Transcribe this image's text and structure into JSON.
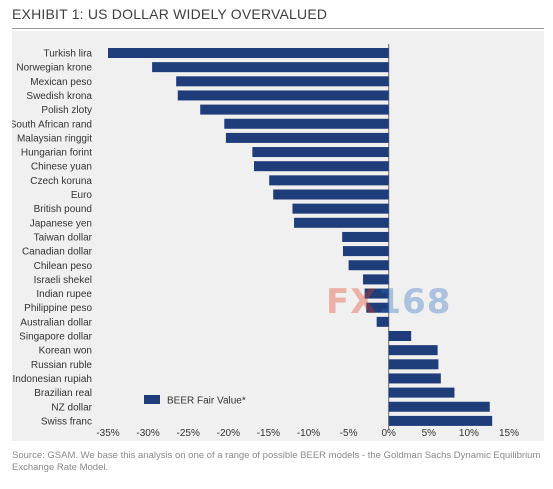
{
  "header": {
    "title": "EXHIBIT 1: US DOLLAR WIDELY OVERVALUED"
  },
  "watermark": {
    "fx": "FX",
    "num": "168"
  },
  "footer": {
    "source": "Source: GSAM. We base this analysis on one of a range of possible BEER models - the Goldman Sachs Dynamic Equilibrium Exchange Rate Model."
  },
  "colors": {
    "bar": "#1f3d7a",
    "panel": "#f0f0f0",
    "axis": "#6b6b6b"
  },
  "chart_data": {
    "type": "bar",
    "orientation": "horizontal",
    "title": "",
    "xlabel": "",
    "ylabel": "",
    "xlim": [
      -35,
      15
    ],
    "x_ticks": [
      -35,
      -30,
      -25,
      -20,
      -15,
      -10,
      -5,
      0,
      5,
      10,
      15
    ],
    "x_tick_labels": [
      "-35%",
      "-30%",
      "-25%",
      "-20%",
      "-15%",
      "-10%",
      "-5%",
      "0%",
      "5%",
      "10%",
      "15%"
    ],
    "legend": {
      "position": "bottom-left",
      "entries": [
        "BEER Fair Value*"
      ]
    },
    "categories": [
      "Turkish lira",
      "Norwegian krone",
      "Mexican peso",
      "Swedish krona",
      "Polish zloty",
      "South African rand",
      "Malaysian ringgit",
      "Hungarian forint",
      "Chinese yuan",
      "Czech koruna",
      "Euro",
      "British pound",
      "Japanese yen",
      "Taiwan dollar",
      "Canadian dollar",
      "Chilean peso",
      "Israeli shekel",
      "Indian rupee",
      "Philippine peso",
      "Australian dollar",
      "Singapore dollar",
      "Korean won",
      "Russian ruble",
      "Indonesian rupiah",
      "Brazilian real",
      "NZ dollar",
      "Swiss franc"
    ],
    "series": [
      {
        "name": "BEER Fair Value*",
        "values": [
          -35.0,
          -29.5,
          -26.5,
          -26.3,
          -23.5,
          -20.5,
          -20.3,
          -17.0,
          -16.8,
          -14.9,
          -14.4,
          -12.0,
          -11.8,
          -5.8,
          -5.7,
          -5.0,
          -3.2,
          -3.0,
          -2.8,
          -1.5,
          2.8,
          6.1,
          6.2,
          6.5,
          8.2,
          12.6,
          12.9
        ]
      }
    ]
  }
}
